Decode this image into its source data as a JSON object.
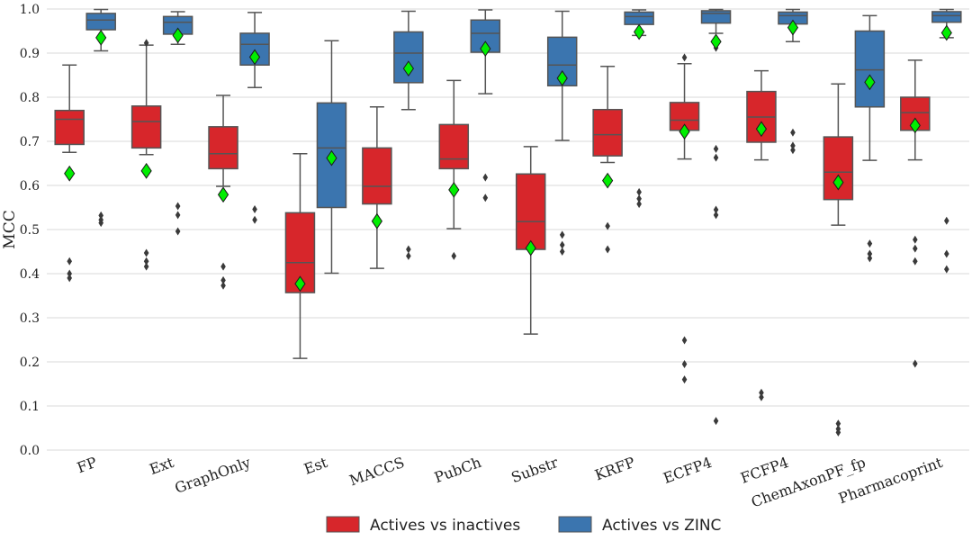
{
  "chart_data": {
    "type": "box",
    "ylabel": "MCC",
    "xlabel": "",
    "ylim": [
      0.0,
      1.0
    ],
    "yticks": [
      "0.0",
      "0.1",
      "0.2",
      "0.3",
      "0.4",
      "0.5",
      "0.6",
      "0.7",
      "0.8",
      "0.9",
      "1.0"
    ],
    "grid": true,
    "legend_position": "bottom-center",
    "categories": [
      "FP",
      "Ext",
      "GraphOnly",
      "Est",
      "MACCS",
      "PubCh",
      "Substr",
      "KRFP",
      "ECFP4",
      "FCFP4",
      "ChemAxonPF_fp",
      "Pharmacoprint"
    ],
    "series": [
      {
        "name": "Actives vs inactives",
        "color": "#d7262b",
        "boxes": [
          {
            "whislo": 0.675,
            "q1": 0.693,
            "med": 0.75,
            "q3": 0.77,
            "whishi": 0.873,
            "mean": 0.627,
            "fliers": [
              0.428,
              0.4,
              0.39
            ]
          },
          {
            "whislo": 0.67,
            "q1": 0.685,
            "med": 0.745,
            "q3": 0.78,
            "whishi": 0.918,
            "mean": 0.633,
            "fliers": [
              0.923,
              0.447,
              0.428,
              0.416
            ]
          },
          {
            "whislo": 0.598,
            "q1": 0.638,
            "med": 0.672,
            "q3": 0.733,
            "whishi": 0.804,
            "mean": 0.579,
            "fliers": [
              0.416,
              0.385,
              0.373
            ]
          },
          {
            "whislo": 0.208,
            "q1": 0.357,
            "med": 0.425,
            "q3": 0.538,
            "whishi": 0.672,
            "mean": 0.377,
            "fliers": []
          },
          {
            "whislo": 0.412,
            "q1": 0.558,
            "med": 0.598,
            "q3": 0.685,
            "whishi": 0.778,
            "mean": 0.519,
            "fliers": []
          },
          {
            "whislo": 0.502,
            "q1": 0.638,
            "med": 0.66,
            "q3": 0.738,
            "whishi": 0.838,
            "mean": 0.59,
            "fliers": [
              0.44
            ]
          },
          {
            "whislo": 0.263,
            "q1": 0.455,
            "med": 0.518,
            "q3": 0.626,
            "whishi": 0.688,
            "mean": 0.458,
            "fliers": []
          },
          {
            "whislo": 0.652,
            "q1": 0.667,
            "med": 0.715,
            "q3": 0.772,
            "whishi": 0.87,
            "mean": 0.611,
            "fliers": [
              0.508,
              0.455
            ]
          },
          {
            "whislo": 0.66,
            "q1": 0.725,
            "med": 0.748,
            "q3": 0.788,
            "whishi": 0.876,
            "mean": 0.722,
            "fliers": [
              0.89,
              0.249,
              0.195,
              0.16
            ]
          },
          {
            "whislo": 0.658,
            "q1": 0.698,
            "med": 0.755,
            "q3": 0.813,
            "whishi": 0.86,
            "mean": 0.728,
            "fliers": [
              0.13,
              0.12
            ]
          },
          {
            "whislo": 0.51,
            "q1": 0.568,
            "med": 0.63,
            "q3": 0.71,
            "whishi": 0.83,
            "mean": 0.607,
            "fliers": [
              0.06,
              0.048,
              0.04
            ]
          },
          {
            "whislo": 0.658,
            "q1": 0.725,
            "med": 0.765,
            "q3": 0.8,
            "whishi": 0.884,
            "mean": 0.736,
            "fliers": [
              0.477,
              0.457,
              0.428,
              0.196
            ]
          }
        ]
      },
      {
        "name": "Actives vs ZINC",
        "color": "#3b75af",
        "boxes": [
          {
            "whislo": 0.905,
            "q1": 0.953,
            "med": 0.975,
            "q3": 0.99,
            "whishi": 0.999,
            "mean": 0.935,
            "fliers": [
              0.532,
              0.522,
              0.515
            ]
          },
          {
            "whislo": 0.92,
            "q1": 0.943,
            "med": 0.97,
            "q3": 0.983,
            "whishi": 0.994,
            "mean": 0.94,
            "fliers": [
              0.553,
              0.533,
              0.496
            ]
          },
          {
            "whislo": 0.822,
            "q1": 0.873,
            "med": 0.92,
            "q3": 0.945,
            "whishi": 0.992,
            "mean": 0.891,
            "fliers": [
              0.546,
              0.522
            ]
          },
          {
            "whislo": 0.401,
            "q1": 0.55,
            "med": 0.685,
            "q3": 0.787,
            "whishi": 0.928,
            "mean": 0.662,
            "fliers": []
          },
          {
            "whislo": 0.772,
            "q1": 0.833,
            "med": 0.9,
            "q3": 0.948,
            "whishi": 0.995,
            "mean": 0.865,
            "fliers": [
              0.455,
              0.44
            ]
          },
          {
            "whislo": 0.808,
            "q1": 0.902,
            "med": 0.945,
            "q3": 0.975,
            "whishi": 0.998,
            "mean": 0.91,
            "fliers": [
              0.618,
              0.572
            ]
          },
          {
            "whislo": 0.702,
            "q1": 0.826,
            "med": 0.873,
            "q3": 0.936,
            "whishi": 0.995,
            "mean": 0.843,
            "fliers": [
              0.488,
              0.465,
              0.45
            ]
          },
          {
            "whislo": 0.94,
            "q1": 0.965,
            "med": 0.983,
            "q3": 0.993,
            "whishi": 0.998,
            "mean": 0.948,
            "fliers": [
              0.585,
              0.57,
              0.558
            ]
          },
          {
            "whislo": 0.945,
            "q1": 0.968,
            "med": 0.99,
            "q3": 0.996,
            "whishi": 0.999,
            "mean": 0.926,
            "fliers": [
              0.912,
              0.683,
              0.663,
              0.545,
              0.533,
              0.066
            ]
          },
          {
            "whislo": 0.926,
            "q1": 0.966,
            "med": 0.985,
            "q3": 0.993,
            "whishi": 0.999,
            "mean": 0.958,
            "fliers": [
              0.72,
              0.69,
              0.68
            ]
          },
          {
            "whislo": 0.657,
            "q1": 0.778,
            "med": 0.862,
            "q3": 0.95,
            "whishi": 0.985,
            "mean": 0.834,
            "fliers": [
              0.468,
              0.445,
              0.435
            ]
          },
          {
            "whislo": 0.935,
            "q1": 0.97,
            "med": 0.985,
            "q3": 0.994,
            "whishi": 0.999,
            "mean": 0.946,
            "fliers": [
              0.52,
              0.445,
              0.41
            ]
          }
        ]
      }
    ],
    "mean_marker_color": "#00ee00"
  }
}
